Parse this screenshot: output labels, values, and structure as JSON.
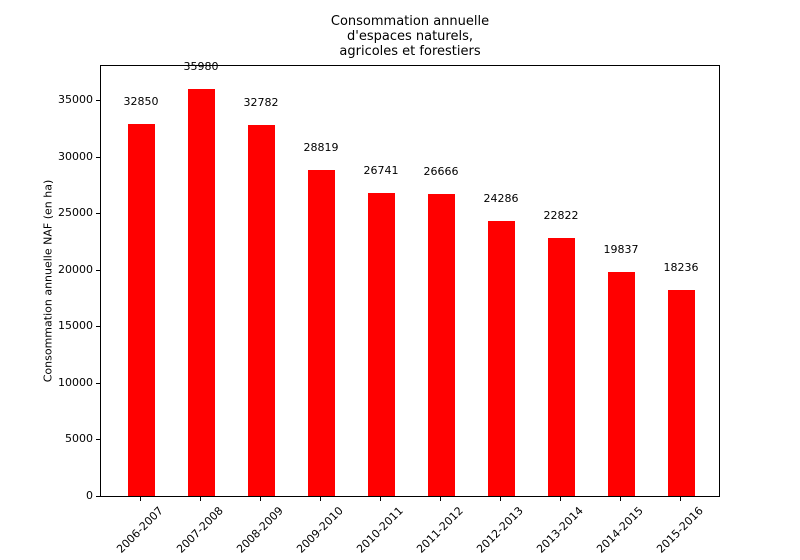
{
  "figure": {
    "background": "#ffffff"
  },
  "chart_data": {
    "type": "bar",
    "title": "Consommation annuelle\nd'espaces naturels,\nagricoles et forestiers",
    "xlabel": "",
    "ylabel": "Consommation annuelle NAF (en ha)",
    "categories": [
      "2006-2007",
      "2007-2008",
      "2008-2009",
      "2009-2010",
      "2010-2011",
      "2011-2012",
      "2012-2013",
      "2013-2014",
      "2014-2015",
      "2015-2016"
    ],
    "values": [
      32850,
      35980,
      32782,
      28819,
      26741,
      26666,
      24286,
      22822,
      19837,
      18236
    ],
    "show_value_labels": true,
    "bar_color": "#ff0000",
    "axis_color": "#000000",
    "text_color": "#000000",
    "ylim": [
      0,
      38000
    ],
    "yticks": [
      0,
      5000,
      10000,
      15000,
      20000,
      25000,
      30000,
      35000
    ],
    "grid": false,
    "legend": "none"
  }
}
